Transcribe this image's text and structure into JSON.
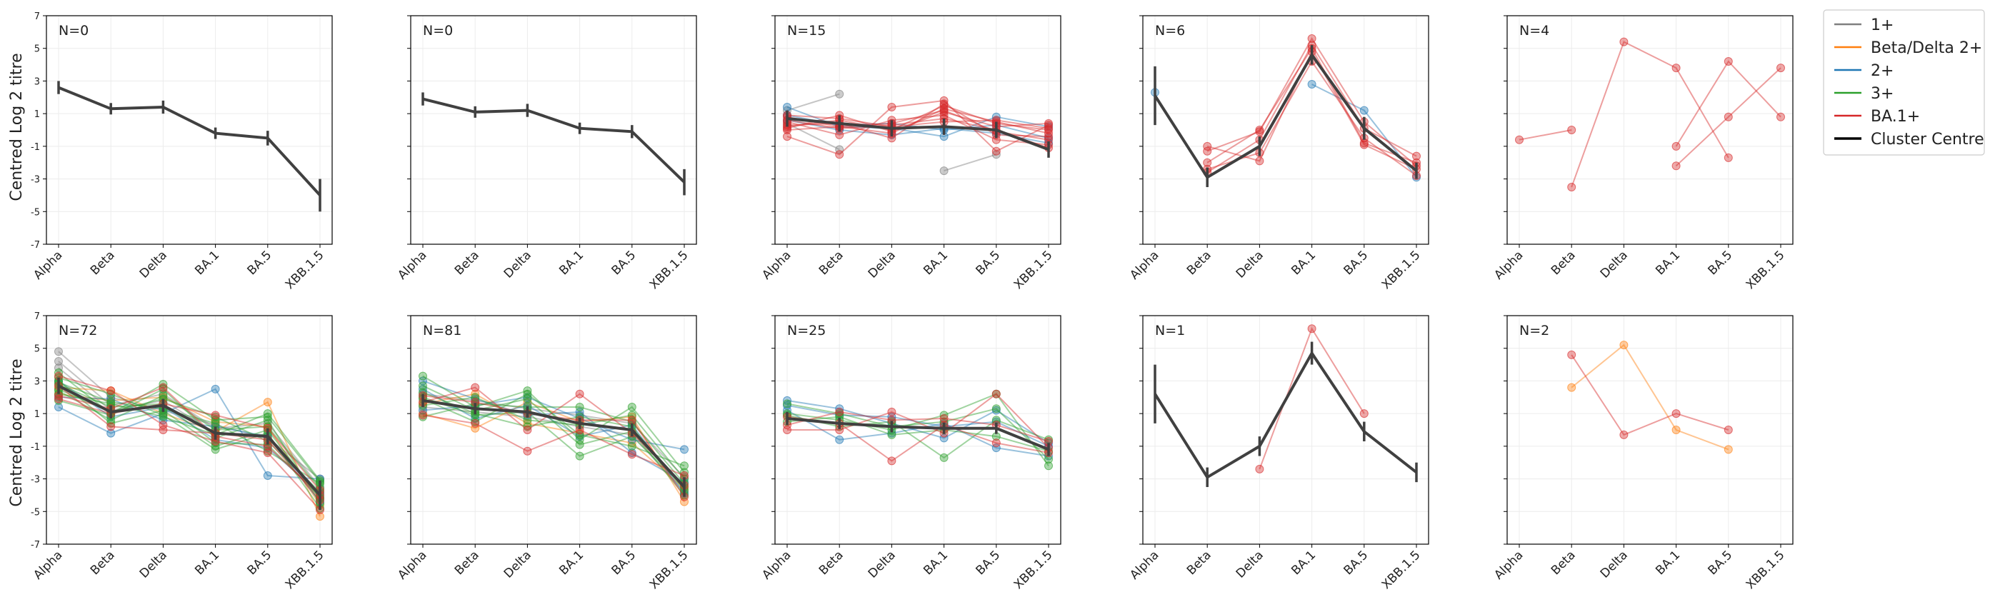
{
  "figure": {
    "ylabel": "Centred Log 2 titre",
    "yticks": [
      7,
      5,
      3,
      1,
      -1,
      -3,
      -5,
      -7
    ],
    "ylim": [
      -7,
      7
    ],
    "categories": [
      "Alpha",
      "Beta",
      "Delta",
      "BA.1",
      "BA.5",
      "XBB.1.5"
    ]
  },
  "legend": {
    "entries": [
      {
        "label": "1+",
        "color": "#7f7f7f"
      },
      {
        "label": "Beta/Delta 2+",
        "color": "#ff7f0e"
      },
      {
        "label": "2+",
        "color": "#1f77b4"
      },
      {
        "label": "3+",
        "color": "#2ca02c"
      },
      {
        "label": "BA.1+",
        "color": "#d62728"
      },
      {
        "label": "Cluster Centre",
        "color": "#000000"
      }
    ]
  },
  "chart_data": [
    {
      "type": "line",
      "row": 0,
      "col": 0,
      "n_label": "N=0",
      "centre": {
        "values": [
          2.6,
          1.3,
          1.4,
          -0.2,
          -0.5,
          -4.0
        ],
        "err": [
          0.4,
          0.35,
          0.4,
          0.35,
          0.45,
          1.0
        ]
      },
      "series": []
    },
    {
      "type": "line",
      "row": 0,
      "col": 1,
      "n_label": "N=0",
      "centre": {
        "values": [
          1.9,
          1.1,
          1.2,
          0.1,
          -0.1,
          -3.2
        ],
        "err": [
          0.4,
          0.35,
          0.4,
          0.35,
          0.4,
          0.8
        ]
      },
      "series": []
    },
    {
      "type": "line",
      "row": 0,
      "col": 2,
      "n_label": "N=15",
      "centre": {
        "values": [
          0.7,
          0.4,
          0.1,
          0.2,
          0.0,
          -1.2
        ],
        "err": [
          0.5,
          0.5,
          0.5,
          0.5,
          0.5,
          0.5
        ]
      },
      "series": [
        {
          "group": "1+",
          "values": [
            1.2,
            2.2,
            null,
            null,
            null,
            null
          ]
        },
        {
          "group": "1+",
          "values": [
            0.4,
            -1.2,
            null,
            null,
            null,
            null
          ]
        },
        {
          "group": "1+",
          "values": [
            null,
            null,
            null,
            -2.5,
            -1.5,
            null
          ]
        },
        {
          "group": "2+",
          "values": [
            1.4,
            0.2,
            0.1,
            -0.4,
            0.8,
            0.2
          ]
        },
        {
          "group": "2+",
          "values": [
            0.6,
            0.0,
            -0.3,
            0.1,
            -0.2,
            -0.8
          ]
        },
        {
          "group": "2+",
          "values": [
            0.9,
            0.3,
            0.4,
            0.0,
            0.3,
            -0.5
          ]
        },
        {
          "group": "BA.1+",
          "values": [
            -0.4,
            -1.5,
            1.4,
            1.8,
            -1.3,
            0.3
          ]
        },
        {
          "group": "BA.1+",
          "values": [
            0.8,
            0.2,
            -0.2,
            1.3,
            0.5,
            -0.2
          ]
        },
        {
          "group": "BA.1+",
          "values": [
            0.2,
            0.6,
            0.0,
            1.5,
            0.4,
            0.0
          ]
        },
        {
          "group": "BA.1+",
          "values": [
            0.5,
            -0.3,
            0.6,
            0.9,
            -0.6,
            -0.9
          ]
        },
        {
          "group": "BA.1+",
          "values": [
            0.1,
            0.9,
            -0.1,
            1.1,
            0.2,
            0.4
          ]
        },
        {
          "group": "BA.1+",
          "values": [
            0.6,
            0.1,
            0.3,
            0.7,
            0.0,
            -1.1
          ]
        },
        {
          "group": "BA.1+",
          "values": [
            0.3,
            0.4,
            -0.5,
            1.6,
            -0.3,
            -0.4
          ]
        },
        {
          "group": "BA.1+",
          "values": [
            0.9,
            0.7,
            0.2,
            0.5,
            0.6,
            0.1
          ]
        },
        {
          "group": "BA.1+",
          "values": [
            0.0,
            0.2,
            0.4,
            1.2,
            -0.1,
            -0.6
          ]
        }
      ]
    },
    {
      "type": "line",
      "row": 0,
      "col": 3,
      "n_label": "N=6",
      "centre": {
        "values": [
          2.1,
          -2.9,
          -1.0,
          4.6,
          0.1,
          -2.5
        ],
        "err": [
          1.8,
          0.6,
          0.6,
          0.6,
          0.7,
          0.5
        ]
      },
      "series": [
        {
          "group": "2+",
          "values": [
            2.3,
            null,
            null,
            2.8,
            1.2,
            -2.9
          ]
        },
        {
          "group": "BA.1+",
          "values": [
            null,
            -1.3,
            -0.1,
            5.6,
            0.5,
            -2.2
          ]
        },
        {
          "group": "BA.1+",
          "values": [
            null,
            -2.0,
            0.0,
            5.0,
            -0.8,
            -2.0
          ]
        },
        {
          "group": "BA.1+",
          "values": [
            null,
            -2.4,
            -1.4,
            4.2,
            -0.5,
            -2.8
          ]
        },
        {
          "group": "BA.1+",
          "values": [
            null,
            -1.0,
            -1.9,
            4.8,
            -0.9,
            -2.4
          ]
        },
        {
          "group": "BA.1+",
          "values": [
            null,
            -2.6,
            -0.6,
            5.2,
            0.1,
            -1.6
          ]
        }
      ]
    },
    {
      "type": "line",
      "row": 0,
      "col": 4,
      "n_label": "N=4",
      "centre": null,
      "series": [
        {
          "group": "BA.1+",
          "values": [
            -0.6,
            0.0,
            null,
            null,
            null,
            null
          ]
        },
        {
          "group": "BA.1+",
          "values": [
            null,
            -3.5,
            5.4,
            3.8,
            -1.7,
            null
          ]
        },
        {
          "group": "BA.1+",
          "values": [
            null,
            null,
            null,
            -1.0,
            4.2,
            0.8
          ]
        },
        {
          "group": "BA.1+",
          "values": [
            null,
            null,
            null,
            -2.2,
            0.8,
            3.8
          ]
        }
      ]
    },
    {
      "type": "line",
      "row": 1,
      "col": 0,
      "n_label": "N=72",
      "centre": {
        "values": [
          2.7,
          1.1,
          1.5,
          -0.2,
          -0.4,
          -4.0
        ],
        "err": [
          0.5,
          0.4,
          0.4,
          0.4,
          0.5,
          0.9
        ]
      },
      "series": [
        {
          "group": "1+",
          "values": [
            4.8,
            2.0,
            1.2,
            0.3,
            -0.5,
            -3.0
          ]
        },
        {
          "group": "1+",
          "values": [
            4.2,
            1.5,
            2.2,
            0.1,
            0.4,
            -3.5
          ]
        },
        {
          "group": "1+",
          "values": [
            3.8,
            1.2,
            1.8,
            -0.2,
            -0.3,
            -4.2
          ]
        },
        {
          "group": "Beta/Delta 2+",
          "values": [
            2.6,
            2.4,
            1.0,
            -0.1,
            1.7,
            -5.3
          ]
        },
        {
          "group": "Beta/Delta 2+",
          "values": [
            2.2,
            1.8,
            2.0,
            0.5,
            0.2,
            -4.6
          ]
        },
        {
          "group": "2+",
          "values": [
            1.4,
            -0.2,
            1.0,
            2.5,
            -2.8,
            -3.0
          ]
        },
        {
          "group": "2+",
          "values": [
            3.0,
            0.8,
            1.4,
            -0.6,
            -1.1,
            -3.9
          ]
        },
        {
          "group": "2+",
          "values": [
            2.0,
            1.9,
            0.6,
            0.2,
            -0.4,
            -4.4
          ]
        },
        {
          "group": "3+",
          "values": [
            3.5,
            1.0,
            2.8,
            0.6,
            0.8,
            -3.2
          ]
        },
        {
          "group": "3+",
          "values": [
            2.8,
            1.4,
            1.6,
            -0.8,
            -0.9,
            -4.1
          ]
        },
        {
          "group": "3+",
          "values": [
            2.4,
            0.6,
            2.1,
            0.0,
            0.2,
            -3.6
          ]
        },
        {
          "group": "3+",
          "values": [
            3.2,
            2.2,
            0.9,
            -1.2,
            -0.2,
            -4.8
          ]
        },
        {
          "group": "3+",
          "values": [
            2.9,
            1.7,
            1.3,
            0.4,
            -1.3,
            -3.3
          ]
        },
        {
          "group": "3+",
          "values": [
            1.8,
            0.9,
            2.5,
            -0.5,
            0.6,
            -4.5
          ]
        },
        {
          "group": "3+",
          "values": [
            2.5,
            1.1,
            1.9,
            0.8,
            -0.7,
            -3.8
          ]
        },
        {
          "group": "3+",
          "values": [
            3.0,
            0.4,
            1.2,
            -1.0,
            0.0,
            -4.2
          ]
        },
        {
          "group": "3+",
          "values": [
            2.2,
            1.6,
            0.8,
            -0.3,
            1.0,
            -3.1
          ]
        },
        {
          "group": "BA.1+",
          "values": [
            2.1,
            1.3,
            2.6,
            -0.4,
            -1.0,
            -4.0
          ]
        },
        {
          "group": "BA.1+",
          "values": [
            2.7,
            0.2,
            0.0,
            -0.2,
            -0.6,
            -4.3
          ]
        },
        {
          "group": "BA.1+",
          "values": [
            1.9,
            1.0,
            1.6,
            0.9,
            0.1,
            -3.7
          ]
        },
        {
          "group": "BA.1+",
          "values": [
            3.3,
            2.4,
            0.3,
            -0.7,
            -1.4,
            -4.9
          ]
        }
      ]
    },
    {
      "type": "line",
      "row": 1,
      "col": 1,
      "n_label": "N=81",
      "centre": {
        "values": [
          1.8,
          1.3,
          1.1,
          0.4,
          0.0,
          -3.5
        ],
        "err": [
          0.4,
          0.35,
          0.35,
          0.35,
          0.4,
          0.6
        ]
      },
      "series": [
        {
          "group": "1+",
          "values": [
            2.2,
            1.8,
            1.3,
            0.9,
            0.4,
            -2.9
          ]
        },
        {
          "group": "1+",
          "values": [
            1.4,
            1.1,
            0.8,
            0.2,
            -0.3,
            -3.8
          ]
        },
        {
          "group": "Beta/Delta 2+",
          "values": [
            1.0,
            0.1,
            1.7,
            0.5,
            0.8,
            -4.4
          ]
        },
        {
          "group": "Beta/Delta 2+",
          "values": [
            1.6,
            2.2,
            0.4,
            -0.2,
            -0.8,
            -3.6
          ]
        },
        {
          "group": "2+",
          "values": [
            3.0,
            1.9,
            0.9,
            1.1,
            -1.4,
            -3.2
          ]
        },
        {
          "group": "2+",
          "values": [
            2.5,
            0.7,
            1.5,
            -0.4,
            0.3,
            -3.9
          ]
        },
        {
          "group": "2+",
          "values": [
            1.2,
            1.5,
            2.0,
            0.7,
            -0.6,
            -1.2
          ]
        },
        {
          "group": "3+",
          "values": [
            3.3,
            1.4,
            2.4,
            -0.6,
            1.4,
            -2.6
          ]
        },
        {
          "group": "3+",
          "values": [
            2.0,
            0.9,
            1.1,
            -1.6,
            -0.4,
            -3.5
          ]
        },
        {
          "group": "3+",
          "values": [
            1.5,
            2.0,
            0.6,
            0.3,
            0.9,
            -3.0
          ]
        },
        {
          "group": "3+",
          "values": [
            2.7,
            1.2,
            1.9,
            -0.9,
            -0.1,
            -4.0
          ]
        },
        {
          "group": "3+",
          "values": [
            0.8,
            1.6,
            1.4,
            1.4,
            0.5,
            -3.3
          ]
        },
        {
          "group": "3+",
          "values": [
            1.9,
            0.5,
            2.2,
            -0.3,
            -1.0,
            -2.2
          ]
        },
        {
          "group": "3+",
          "values": [
            2.3,
            1.0,
            0.2,
            0.8,
            0.2,
            -3.7
          ]
        },
        {
          "group": "BA.1+",
          "values": [
            1.7,
            2.6,
            0.0,
            2.2,
            -0.2,
            -3.4
          ]
        },
        {
          "group": "BA.1+",
          "values": [
            0.9,
            0.4,
            -1.3,
            0.0,
            -1.5,
            -2.8
          ]
        },
        {
          "group": "BA.1+",
          "values": [
            2.1,
            1.7,
            1.0,
            0.6,
            0.6,
            -4.1
          ]
        }
      ]
    },
    {
      "type": "line",
      "row": 1,
      "col": 2,
      "n_label": "N=25",
      "centre": {
        "values": [
          0.7,
          0.4,
          0.2,
          0.1,
          0.1,
          -1.2
        ],
        "err": [
          0.4,
          0.35,
          0.35,
          0.35,
          0.35,
          0.4
        ]
      },
      "series": [
        {
          "group": "2+",
          "values": [
            1.8,
            1.3,
            0.4,
            -0.5,
            1.2,
            -0.8
          ]
        },
        {
          "group": "2+",
          "values": [
            1.2,
            -0.6,
            -0.2,
            0.4,
            -1.1,
            -1.6
          ]
        },
        {
          "group": "2+",
          "values": [
            1.5,
            0.9,
            0.8,
            0.2,
            0.5,
            -1.0
          ]
        },
        {
          "group": "3+",
          "values": [
            1.0,
            0.6,
            0.0,
            0.9,
            2.2,
            -2.2
          ]
        },
        {
          "group": "3+",
          "values": [
            0.9,
            0.2,
            0.5,
            -1.7,
            0.6,
            -0.6
          ]
        },
        {
          "group": "3+",
          "values": [
            1.6,
            1.0,
            0.2,
            0.5,
            1.3,
            -1.8
          ]
        },
        {
          "group": "3+",
          "values": [
            0.5,
            0.8,
            -0.3,
            0.0,
            -0.4,
            -1.3
          ]
        },
        {
          "group": "BA.1+",
          "values": [
            0.0,
            0.0,
            1.1,
            -0.2,
            2.2,
            -1.1
          ]
        },
        {
          "group": "BA.1+",
          "values": [
            0.8,
            0.4,
            -1.9,
            0.3,
            -0.8,
            -1.4
          ]
        },
        {
          "group": "BA.1+",
          "values": [
            0.3,
            1.1,
            0.6,
            0.7,
            0.3,
            -0.7
          ]
        }
      ]
    },
    {
      "type": "line",
      "row": 1,
      "col": 3,
      "n_label": "N=1",
      "centre": {
        "values": [
          2.2,
          -2.9,
          -1.0,
          4.7,
          -0.1,
          -2.6
        ],
        "err": [
          1.8,
          0.6,
          0.6,
          0.7,
          0.6,
          0.6
        ]
      },
      "series": [
        {
          "group": "BA.1+",
          "values": [
            null,
            null,
            -2.4,
            6.2,
            1.0,
            null
          ]
        }
      ]
    },
    {
      "type": "line",
      "row": 1,
      "col": 4,
      "n_label": "N=2",
      "centre": null,
      "series": [
        {
          "group": "Beta/Delta 2+",
          "values": [
            null,
            2.6,
            5.2,
            0.0,
            -1.2,
            null
          ]
        },
        {
          "group": "BA.1+",
          "values": [
            null,
            4.6,
            -0.3,
            1.0,
            0.0,
            null
          ]
        }
      ]
    }
  ]
}
